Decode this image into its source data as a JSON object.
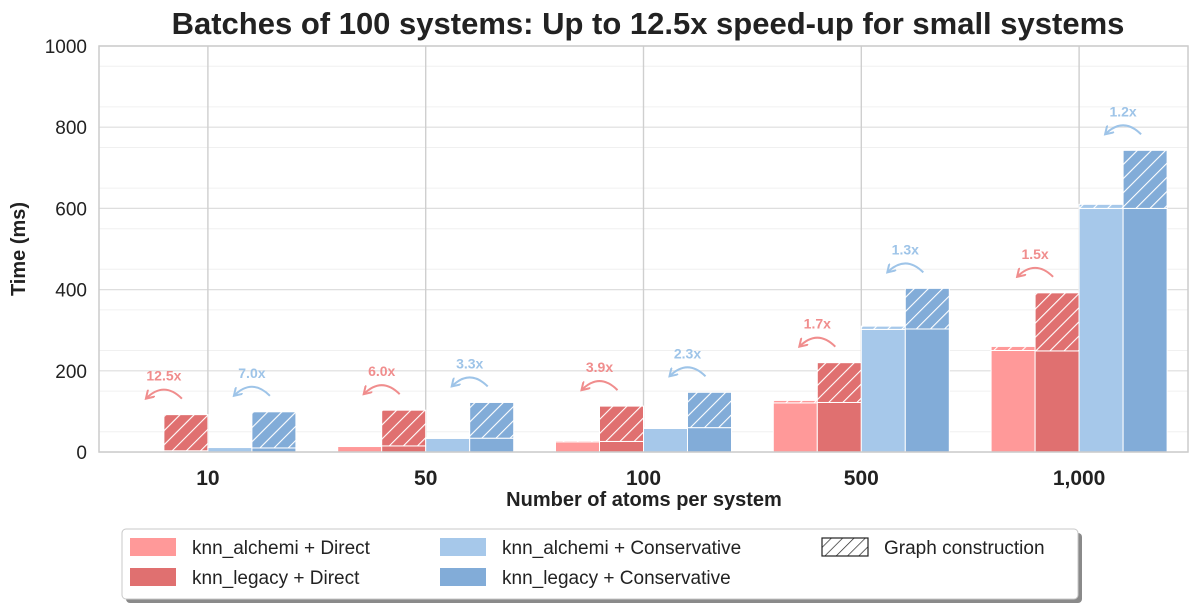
{
  "chart_data": {
    "type": "bar",
    "title": "Batches of 100 systems: Up to 12.5x speed-up for small systems",
    "xlabel": "Number of atoms per system",
    "ylabel": "Time (ms)",
    "ylim": [
      0,
      1000
    ],
    "yticks": [
      "0",
      "200",
      "400",
      "600",
      "800",
      "1000"
    ],
    "categories": [
      "10",
      "50",
      "100",
      "500",
      "1,000"
    ],
    "colors": {
      "alchemi_direct": "#ff9999",
      "legacy_direct": "#e07070",
      "alchemi_conservative": "#a6c8ea",
      "legacy_conservative": "#82acd8",
      "direct_speedup": "#f08d8d",
      "conservative_speedup": "#9ec4e8"
    },
    "series": [
      {
        "name": "knn_alchemi + Direct",
        "color_key": "alchemi_direct",
        "total": [
          3,
          15,
          28,
          127,
          260
        ],
        "graph_construction": [
          0.5,
          1.5,
          3,
          6,
          10
        ]
      },
      {
        "name": "knn_legacy + Direct",
        "color_key": "legacy_direct",
        "total": [
          92,
          103,
          113,
          220,
          392
        ],
        "graph_construction": [
          89,
          88,
          87,
          98,
          143
        ]
      },
      {
        "name": "knn_alchemi + Conservative",
        "color_key": "alchemi_conservative",
        "total": [
          12,
          35,
          60,
          310,
          610
        ],
        "graph_construction": [
          1,
          1.5,
          2,
          8,
          10
        ]
      },
      {
        "name": "knn_legacy + Conservative",
        "color_key": "legacy_conservative",
        "total": [
          99,
          122,
          147,
          403,
          743
        ],
        "graph_construction": [
          89,
          88,
          87,
          100,
          143
        ]
      }
    ],
    "speedups": {
      "direct": [
        "12.5x",
        "6.0x",
        "3.9x",
        "1.7x",
        "1.5x"
      ],
      "conservative": [
        "7.0x",
        "3.3x",
        "2.3x",
        "1.3x",
        "1.2x"
      ]
    },
    "legend": {
      "items": [
        "knn_alchemi + Direct",
        "knn_legacy + Direct",
        "knn_alchemi + Conservative",
        "knn_legacy + Conservative",
        "Graph construction"
      ],
      "placement": "bottom-center"
    }
  }
}
